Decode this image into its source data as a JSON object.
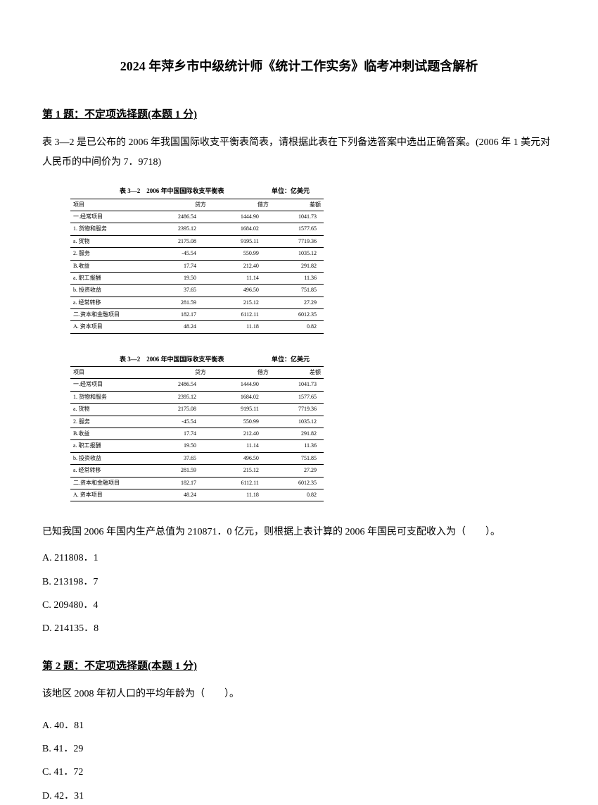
{
  "title": "2024 年萍乡市中级统计师《统计工作实务》临考冲刺试题含解析",
  "q1": {
    "header": "第 1 题：不定项选择题(本题 1 分)",
    "body": "表 3—2 是已公布的 2006 年我国国际收支平衡表简表，请根据此表在下列备选答案中选出正确答案。(2006 年 1 美元对人民币的中间价为 7．9718)",
    "table_title": "表 3—2　2006 年中国国际收支平衡表",
    "table_unit": "单位：亿美元",
    "headers": [
      "项目",
      "贷方",
      "借方",
      "差额"
    ],
    "rows": [
      [
        "一.经常项目",
        "2486.54",
        "1444.90",
        "1041.73"
      ],
      [
        "1. 货物和服务",
        "2395.12",
        "1684.02",
        "1577.65"
      ],
      [
        "a. 货物",
        "2175.08",
        "9195.11",
        "7719.36"
      ],
      [
        "2. 服务",
        "-45.54",
        "550.99",
        "1035.12"
      ],
      [
        "B.收益",
        "17.74",
        "212.40",
        "291.82"
      ],
      [
        "a. 职工报酬",
        "19.50",
        "11.14",
        "11.36"
      ],
      [
        "b. 投资收益",
        "37.65",
        "496.50",
        "751.85"
      ],
      [
        "a. 经常转移",
        "281.59",
        "215.12",
        "27.29"
      ],
      [
        "二.资本和金融项目",
        "182.17",
        "6112.11",
        "6012.35"
      ],
      [
        "A. 资本项目",
        "48.24",
        "11.18",
        "0.82"
      ]
    ],
    "stem": "已知我国 2006 年国内生产总值为 210871．0 亿元，则根据上表计算的 2006 年国民可支配收入为（　　）。",
    "options": [
      "A. 211808．1",
      "B. 213198．7",
      "C. 209480．4",
      "D. 214135．8"
    ]
  },
  "q2": {
    "header": "第 2 题：不定项选择题(本题 1 分)",
    "body": "该地区 2008 年初人口的平均年龄为（　　）。",
    "options": [
      "A. 40．81",
      "B. 41．29",
      "C. 41．72",
      "D. 42．31"
    ]
  }
}
